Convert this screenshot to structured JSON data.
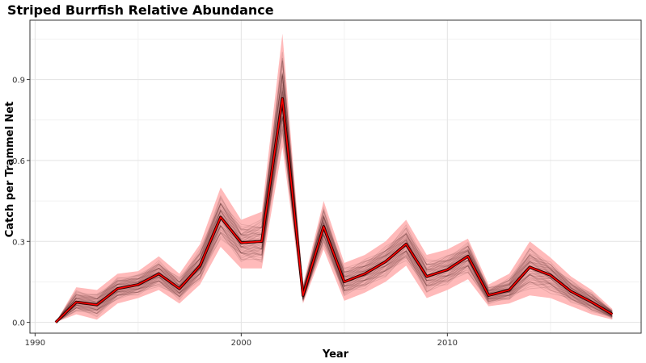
{
  "chart_data": {
    "type": "line",
    "title": "Striped Burrfish Relative Abundance",
    "xlabel": "Year",
    "ylabel": "Catch per Trammel Net",
    "xlim": [
      1989.75,
      2019.4
    ],
    "ylim": [
      -0.04,
      1.12
    ],
    "x_ticks": [
      1990,
      2000,
      2010
    ],
    "x_tick_labels": [
      "1990",
      "2000",
      "2010"
    ],
    "y_ticks": [
      0.0,
      0.3,
      0.6,
      0.9
    ],
    "y_tick_labels": [
      "0.0",
      "0.3",
      "0.6",
      "0.9"
    ],
    "grid": true,
    "legend": "none",
    "colors": {
      "median_line": "#ff0000",
      "uncertainty_band": "#ffb3b3",
      "bootstrap_traces": "#3b0d0d"
    },
    "x": [
      1991,
      1992,
      1993,
      1994,
      1995,
      1996,
      1997,
      1998,
      1999,
      2000,
      2001,
      2002,
      2003,
      2004,
      2005,
      2006,
      2007,
      2008,
      2009,
      2010,
      2011,
      2012,
      2013,
      2014,
      2015,
      2016,
      2017,
      2018
    ],
    "series": [
      {
        "values": [
          0.0,
          0.075,
          0.065,
          0.125,
          0.14,
          0.18,
          0.125,
          0.21,
          0.39,
          0.295,
          0.3,
          0.83,
          0.1,
          0.355,
          0.15,
          0.18,
          0.225,
          0.29,
          0.17,
          0.195,
          0.245,
          0.1,
          0.12,
          0.205,
          0.175,
          0.115,
          0.075,
          0.03
        ]
      }
    ],
    "band_lower": [
      0.0,
      0.03,
      0.01,
      0.07,
      0.09,
      0.12,
      0.07,
      0.14,
      0.28,
      0.2,
      0.2,
      0.65,
      0.07,
      0.27,
      0.08,
      0.11,
      0.15,
      0.21,
      0.09,
      0.12,
      0.16,
      0.06,
      0.07,
      0.1,
      0.09,
      0.06,
      0.03,
      0.01
    ],
    "band_upper": [
      0.0,
      0.13,
      0.12,
      0.18,
      0.19,
      0.245,
      0.18,
      0.29,
      0.5,
      0.38,
      0.41,
      1.07,
      0.14,
      0.45,
      0.22,
      0.25,
      0.3,
      0.38,
      0.25,
      0.27,
      0.31,
      0.14,
      0.18,
      0.3,
      0.24,
      0.17,
      0.12,
      0.05
    ]
  }
}
